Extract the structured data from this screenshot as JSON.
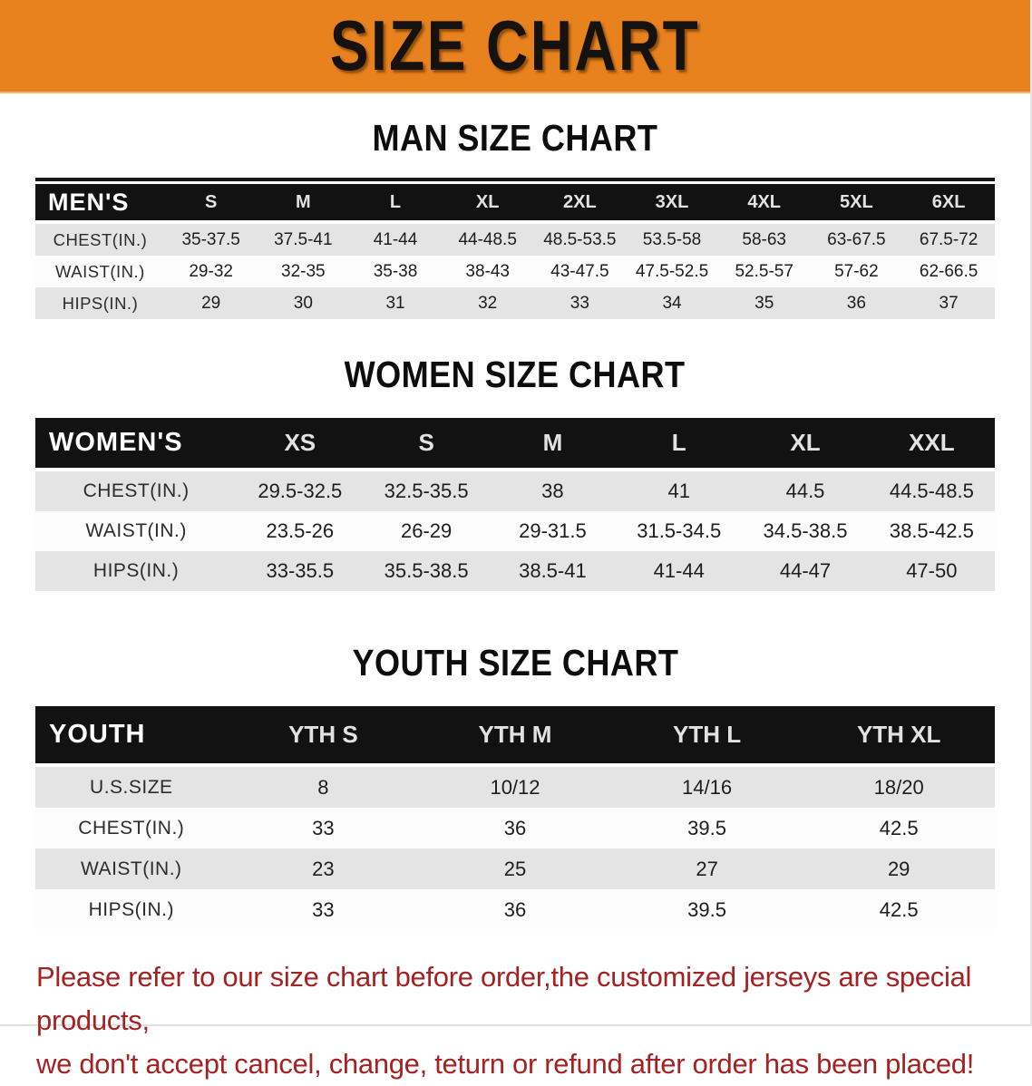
{
  "banner": {
    "title": "SIZE CHART",
    "bg_color": "#E8821E",
    "text_color": "#161210"
  },
  "men": {
    "heading": "MAN SIZE CHART",
    "label": "MEN'S",
    "sizes": [
      "S",
      "M",
      "L",
      "XL",
      "2XL",
      "3XL",
      "4XL",
      "5XL",
      "6XL"
    ],
    "rows": [
      {
        "label": "CHEST(IN.)",
        "values": [
          "35-37.5",
          "37.5-41",
          "41-44",
          "44-48.5",
          "48.5-53.5",
          "53.5-58",
          "58-63",
          "63-67.5",
          "67.5-72"
        ]
      },
      {
        "label": "WAIST(IN.)",
        "values": [
          "29-32",
          "32-35",
          "35-38",
          "38-43",
          "43-47.5",
          "47.5-52.5",
          "52.5-57",
          "57-62",
          "62-66.5"
        ]
      },
      {
        "label": "HIPS(IN.)",
        "values": [
          "29",
          "30",
          "31",
          "32",
          "33",
          "34",
          "35",
          "36",
          "37"
        ]
      }
    ]
  },
  "women": {
    "heading": "WOMEN SIZE CHART",
    "label": "WOMEN'S",
    "sizes": [
      "XS",
      "S",
      "M",
      "L",
      "XL",
      "XXL"
    ],
    "rows": [
      {
        "label": "CHEST(IN.)",
        "values": [
          "29.5-32.5",
          "32.5-35.5",
          "38",
          "41",
          "44.5",
          "44.5-48.5"
        ]
      },
      {
        "label": "WAIST(IN.)",
        "values": [
          "23.5-26",
          "26-29",
          "29-31.5",
          "31.5-34.5",
          "34.5-38.5",
          "38.5-42.5"
        ]
      },
      {
        "label": "HIPS(IN.)",
        "values": [
          "33-35.5",
          "35.5-38.5",
          "38.5-41",
          "41-44",
          "44-47",
          "47-50"
        ]
      }
    ]
  },
  "youth": {
    "heading": "YOUTH SIZE CHART",
    "label": "YOUTH",
    "sizes": [
      "YTH S",
      "YTH M",
      "YTH L",
      "YTH XL"
    ],
    "rows": [
      {
        "label": "U.S.SIZE",
        "values": [
          "8",
          "10/12",
          "14/16",
          "18/20"
        ]
      },
      {
        "label": "CHEST(IN.)",
        "values": [
          "33",
          "36",
          "39.5",
          "42.5"
        ]
      },
      {
        "label": "WAIST(IN.)",
        "values": [
          "23",
          "25",
          "27",
          "29"
        ]
      },
      {
        "label": "HIPS(IN.)",
        "values": [
          "33",
          "36",
          "39.5",
          "42.5"
        ]
      }
    ]
  },
  "note": {
    "line1": "Please refer to our size chart before order,the customized jerseys are special products,",
    "line2": "we don't accept cancel, change, teturn or refund after order has been placed!",
    "color": "#A42222"
  },
  "colors": {
    "header_bar_bg": "#121212",
    "row_alt_bg": "#E4E4E4",
    "row_white_bg": "#FDFDFD"
  }
}
